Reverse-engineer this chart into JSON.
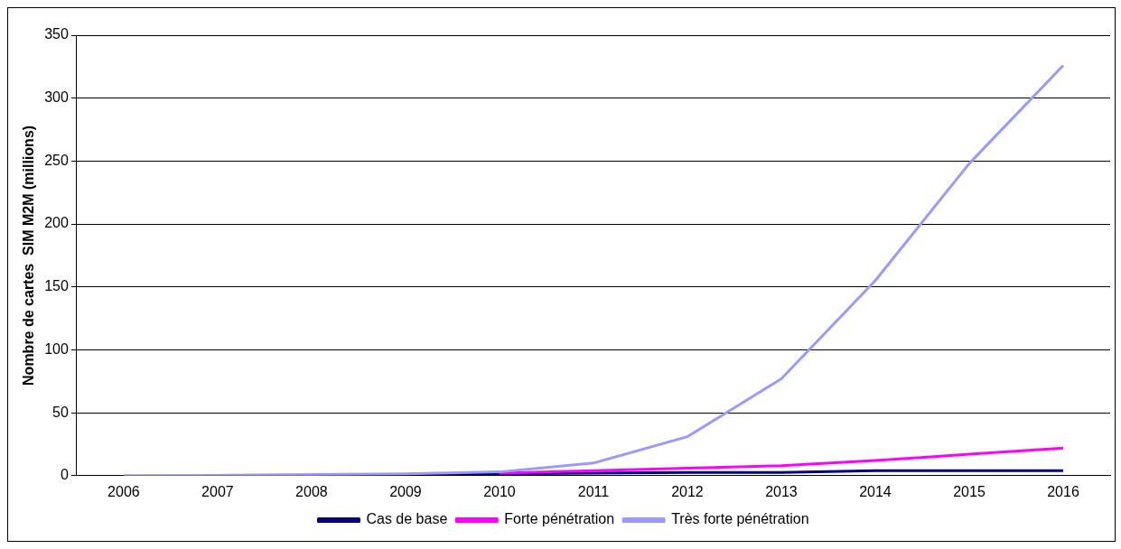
{
  "chart_data": {
    "type": "line",
    "ylabel": "Nombre de cartes  SIM M2M (millions)",
    "categories": [
      "2006",
      "2007",
      "2008",
      "2009",
      "2010",
      "2011",
      "2012",
      "2013",
      "2014",
      "2015",
      "2016"
    ],
    "series": [
      {
        "name": "Cas de base",
        "color": "#000080",
        "values": [
          null,
          null,
          0.8,
          1,
          1.5,
          2,
          2.5,
          2.5,
          4,
          4,
          4
        ]
      },
      {
        "name": "Forte pénétration",
        "color": "#ff00ff",
        "values": [
          null,
          null,
          null,
          null,
          2,
          4,
          6,
          8,
          12,
          17,
          22
        ]
      },
      {
        "name": "Très forte pénétration",
        "color": "#9999ff",
        "values": [
          0,
          0.3,
          1,
          1.5,
          3,
          10,
          31,
          77,
          155,
          248,
          326
        ]
      }
    ],
    "ylim": [
      0,
      350
    ],
    "yticks": [
      0,
      50,
      100,
      150,
      200,
      250,
      300,
      350
    ],
    "grid": "y",
    "legend": "bottom",
    "marker": "none",
    "line_style": "solid"
  }
}
